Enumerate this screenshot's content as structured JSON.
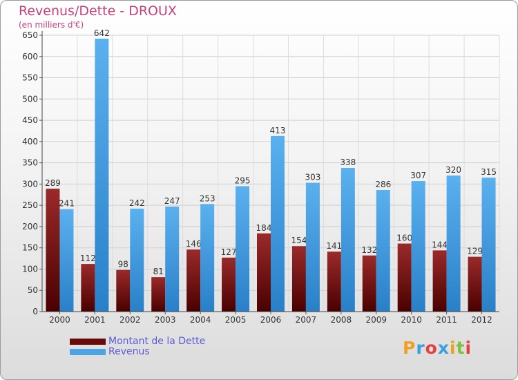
{
  "chart_data": {
    "type": "bar",
    "title": "Revenus/Dette - DROUX",
    "subtitle": "(en milliers d'€)",
    "categories": [
      "2000",
      "2001",
      "2002",
      "2003",
      "2004",
      "2005",
      "2006",
      "2007",
      "2008",
      "2009",
      "2010",
      "2011",
      "2012"
    ],
    "series": [
      {
        "name": "Montant de la Dette",
        "color": "#7a1010",
        "values": [
          289,
          112,
          98,
          81,
          146,
          127,
          184,
          154,
          141,
          132,
          160,
          144,
          129
        ]
      },
      {
        "name": "Revenus",
        "color": "#4da3e3",
        "values": [
          241,
          642,
          242,
          247,
          253,
          295,
          413,
          303,
          338,
          286,
          307,
          320,
          315
        ]
      }
    ],
    "ylim": [
      0,
      650
    ],
    "yticks": [
      0,
      50,
      100,
      150,
      200,
      250,
      300,
      350,
      400,
      450,
      500,
      550,
      600,
      650
    ],
    "grid": true,
    "legend_position": "bottom-left"
  },
  "legend": {
    "debt_label": "Montant de la Dette",
    "revenue_label": "Revenus"
  },
  "logo": {
    "letters": [
      "P",
      "r",
      "o",
      "x",
      "i",
      "t",
      "i"
    ],
    "colors": [
      "#f0a020",
      "#3aa0e0",
      "#e84040",
      "#3aa0e0",
      "#f0a020",
      "#7cc040",
      "#e84040"
    ]
  }
}
